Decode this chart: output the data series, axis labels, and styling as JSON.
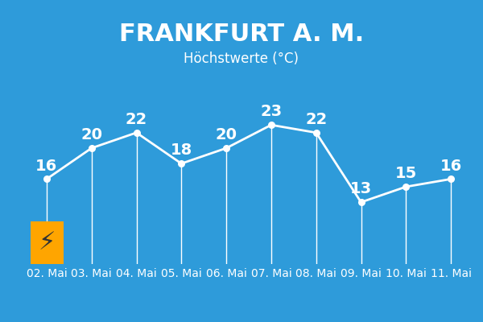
{
  "title": "FRANKFURT A. M.",
  "subtitle": "Höchstwerte (°C)",
  "background_color": "#2E9BDA",
  "line_color": "#FFFFFF",
  "text_color": "#FFFFFF",
  "label_color": "#FFFFFF",
  "dates": [
    "02. Mai",
    "03. Mai",
    "04. Mai",
    "05. Mai",
    "06. Mai",
    "07. Mai",
    "08. Mai",
    "09. Mai",
    "10. Mai",
    "11. Mai"
  ],
  "values": [
    16,
    20,
    22,
    18,
    20,
    23,
    22,
    13,
    15,
    16
  ],
  "title_fontsize": 22,
  "subtitle_fontsize": 12,
  "data_fontsize": 14,
  "tick_fontsize": 10,
  "warning_color": "#FFA500",
  "warning_icon_color": "#333333",
  "ylim": [
    5,
    30
  ]
}
